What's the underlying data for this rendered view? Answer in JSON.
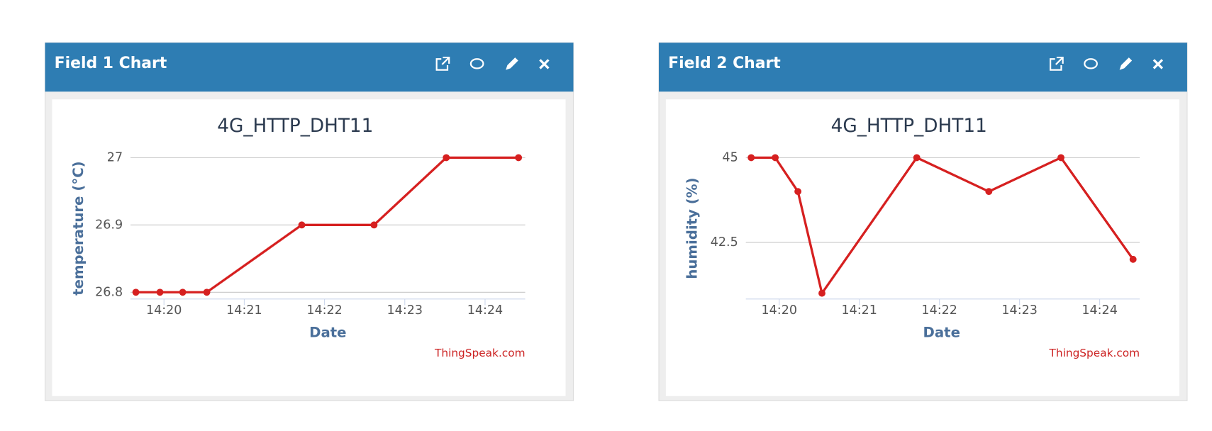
{
  "panels": [
    {
      "header": "Field 1 Chart"
    },
    {
      "header": "Field 2 Chart"
    }
  ],
  "chart_data": [
    {
      "type": "line",
      "title": "4G_HTTP_DHT11",
      "x_label": "Date",
      "y_label": "temperature  (°C)",
      "credit": "ThingSpeak.com",
      "x": [
        "14:19:39",
        "14:19:57",
        "14:20:14",
        "14:20:32",
        "14:21:43",
        "14:22:37",
        "14:23:31",
        "14:24:25"
      ],
      "series": [
        {
          "name": "temperature",
          "color": "#d62020",
          "values": [
            26.8,
            26.8,
            26.8,
            26.8,
            26.9,
            26.9,
            27,
            27
          ]
        }
      ],
      "xlim": [
        "14:19:35",
        "14:24:30"
      ],
      "xticks": [
        "14:20",
        "14:21",
        "14:22",
        "14:23",
        "14:24"
      ],
      "ylim": [
        26.79,
        27
      ],
      "yticks": [
        26.8,
        26.9,
        27
      ],
      "grid": true
    },
    {
      "type": "line",
      "title": "4G_HTTP_DHT11",
      "x_label": "Date",
      "y_label": "humidity  (%)",
      "credit": "ThingSpeak.com",
      "x": [
        "14:19:39",
        "14:19:57",
        "14:20:14",
        "14:20:32",
        "14:21:43",
        "14:22:37",
        "14:23:31",
        "14:24:25"
      ],
      "series": [
        {
          "name": "humidity",
          "color": "#d62020",
          "values": [
            45,
            45,
            44,
            41,
            45,
            44,
            45,
            42
          ]
        }
      ],
      "xlim": [
        "14:19:35",
        "14:24:30"
      ],
      "xticks": [
        "14:20",
        "14:21",
        "14:22",
        "14:23",
        "14:24"
      ],
      "ylim": [
        40.83,
        45
      ],
      "yticks": [
        42.5,
        45
      ],
      "grid": true
    }
  ]
}
